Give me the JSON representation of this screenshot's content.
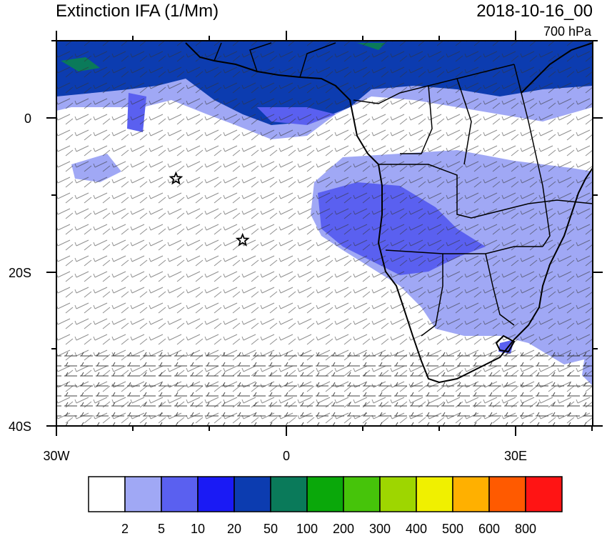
{
  "header": {
    "title": "Extinction IFA (1/Mm)",
    "date": "2018-10-16_00",
    "level": "700 hPa"
  },
  "axes": {
    "x_ticks": [
      "30W",
      "0",
      "30E"
    ],
    "y_ticks": [
      "0",
      "20S",
      "40S"
    ],
    "lon_range": [
      -30,
      40
    ],
    "lat_range": [
      -40,
      10
    ]
  },
  "colorbar": {
    "colors": [
      "#ffffff",
      "#a0a8f5",
      "#5a60f0",
      "#1a1af5",
      "#0c3cb0",
      "#0a7a5a",
      "#0aa80a",
      "#46c40a",
      "#9ed600",
      "#f0f000",
      "#ffb000",
      "#ff5a00",
      "#ff1414"
    ],
    "labels": [
      "2",
      "5",
      "10",
      "20",
      "50",
      "100",
      "200",
      "300",
      "400",
      "500",
      "600",
      "800"
    ]
  },
  "markers": {
    "stars": [
      {
        "lon": -14.4,
        "lat": -7.9
      },
      {
        "lon": -5.7,
        "lat": -15.9
      }
    ]
  }
}
